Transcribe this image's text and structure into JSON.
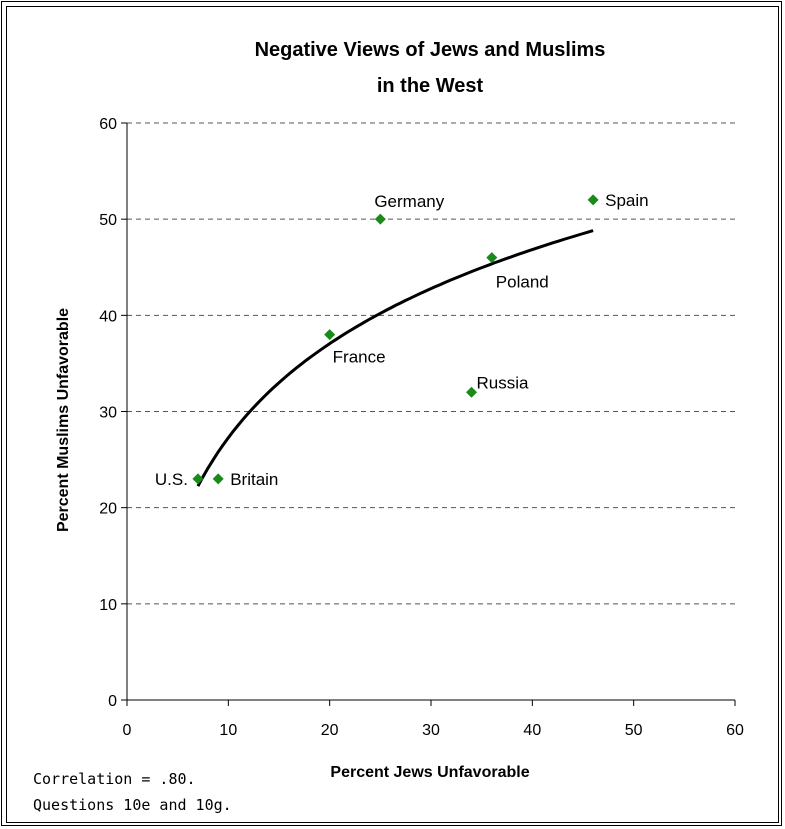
{
  "chart_data": {
    "type": "scatter",
    "title": [
      "Negative Views of Jews and Muslims",
      "in the West"
    ],
    "xlabel": "Percent Jews Unfavorable",
    "ylabel": "Percent Muslims Unfavorable",
    "xlim": [
      0,
      60
    ],
    "ylim": [
      0,
      60
    ],
    "xticks": [
      "0",
      "10",
      "20",
      "30",
      "40",
      "50",
      "60"
    ],
    "yticks": [
      "0",
      "10",
      "20",
      "30",
      "40",
      "50",
      "60"
    ],
    "grid": "horizontal-dashed",
    "marker_color": "#1a8a1a",
    "points": [
      {
        "label": "U.S.",
        "x": 7,
        "y": 23,
        "label_side": "left"
      },
      {
        "label": "Britain",
        "x": 9,
        "y": 23,
        "label_side": "right"
      },
      {
        "label": "France",
        "x": 20,
        "y": 38,
        "label_side": "below-right"
      },
      {
        "label": "Germany",
        "x": 25,
        "y": 50,
        "label_side": "above"
      },
      {
        "label": "Russia",
        "x": 34,
        "y": 32,
        "label_side": "above-right"
      },
      {
        "label": "Poland",
        "x": 36,
        "y": 46,
        "label_side": "below"
      },
      {
        "label": "Spain",
        "x": 46,
        "y": 52,
        "label_side": "right"
      }
    ],
    "trendline": {
      "type": "logarithmic",
      "x_range": [
        7,
        46
      ]
    }
  },
  "notes": [
    "Correlation = .80.",
    "Questions 10e and 10g."
  ]
}
